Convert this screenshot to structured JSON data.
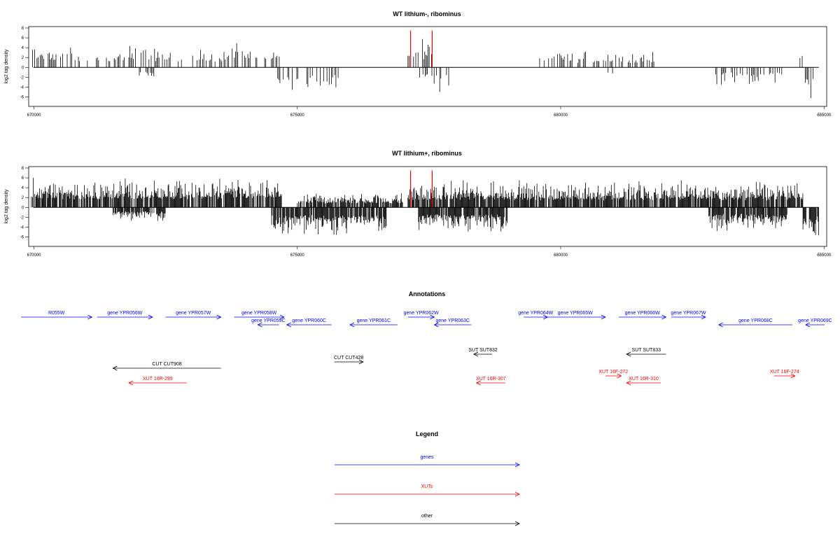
{
  "colors": {
    "genes": "#0000ff",
    "xuts": "#ff0000",
    "other": "#000000",
    "highlight": "#ff0000"
  },
  "chart_data": [
    {
      "type": "bar",
      "title": "WT lithium-, ribominus",
      "ylabel": "log2 tag density",
      "xlim": [
        669900,
        685050
      ],
      "ylim": [
        -6.5,
        8
      ],
      "yticks": [
        -6,
        -4,
        -2,
        0,
        2,
        4,
        6,
        8
      ],
      "xticks": [
        670000,
        675000,
        680000,
        685000
      ],
      "xtick_labels": [
        "670000",
        "675000",
        "680000",
        "685000"
      ],
      "grid": false,
      "density": "sparse",
      "plus_strand_regions": [
        {
          "from": 669950,
          "to": 673700,
          "max": 4.5
        },
        {
          "from": 673700,
          "to": 674700,
          "max": 5.5
        },
        {
          "from": 677100,
          "to": 677600,
          "max": 5.8
        },
        {
          "from": 679600,
          "to": 681800,
          "max": 3.5
        },
        {
          "from": 684500,
          "to": 684600,
          "max": 3.5
        }
      ],
      "minus_strand_regions": [
        {
          "from": 672000,
          "to": 672300,
          "max": -3.5
        },
        {
          "from": 674500,
          "to": 675800,
          "max": -5.5
        },
        {
          "from": 677300,
          "to": 678000,
          "max": -5
        },
        {
          "from": 680900,
          "to": 681000,
          "max": -3
        },
        {
          "from": 682900,
          "to": 684200,
          "max": -4
        },
        {
          "from": 684600,
          "to": 684900,
          "max": -7
        }
      ],
      "highlights": [
        {
          "x": 677150,
          "value": 7.5
        },
        {
          "x": 677560,
          "value": 7.5
        }
      ]
    },
    {
      "type": "bar",
      "title": "WT lithium+, ribominus",
      "ylabel": "log2 tag density",
      "xlim": [
        669900,
        685050
      ],
      "ylim": [
        -6.5,
        8
      ],
      "yticks": [
        -6,
        -4,
        -2,
        0,
        2,
        4,
        6,
        8
      ],
      "xticks": [
        670000,
        675000,
        680000,
        685000
      ],
      "xtick_labels": [
        "670000",
        "675000",
        "680000",
        "685000"
      ],
      "grid": false,
      "density": "dense",
      "plus_strand_regions": [
        {
          "from": 669950,
          "to": 674700,
          "max": 6
        },
        {
          "from": 675000,
          "to": 677000,
          "max": 3
        },
        {
          "from": 677100,
          "to": 677600,
          "max": 5
        },
        {
          "from": 677600,
          "to": 684600,
          "max": 5.5
        }
      ],
      "minus_strand_regions": [
        {
          "from": 671500,
          "to": 672500,
          "max": -3
        },
        {
          "from": 674500,
          "to": 676700,
          "max": -6
        },
        {
          "from": 677300,
          "to": 679000,
          "max": -5.5
        },
        {
          "from": 682800,
          "to": 684300,
          "max": -5
        },
        {
          "from": 684600,
          "to": 684900,
          "max": -7
        }
      ],
      "highlights": [
        {
          "x": 677150,
          "value": 7.5
        },
        {
          "x": 677560,
          "value": 7.5
        }
      ]
    }
  ],
  "annotations": {
    "title": "Annotations",
    "features": [
      {
        "label": "R055W",
        "type": "genes",
        "dir": "right",
        "row": 0,
        "start": 669300,
        "end": 671100
      },
      {
        "label": "gene YPR056W",
        "type": "genes",
        "dir": "right",
        "row": 0,
        "start": 671200,
        "end": 672250
      },
      {
        "label": "gene YPR057W",
        "type": "genes",
        "dir": "right",
        "row": 0,
        "start": 672500,
        "end": 673550
      },
      {
        "label": "gene YPR058W",
        "type": "genes",
        "dir": "right",
        "row": 0,
        "start": 673800,
        "end": 674750
      },
      {
        "label": "gene YPR059C",
        "type": "genes",
        "dir": "left",
        "row": 1,
        "start": 674250,
        "end": 674650
      },
      {
        "label": "gene YPR060C",
        "type": "genes",
        "dir": "left",
        "row": 1,
        "start": 674800,
        "end": 675650
      },
      {
        "label": "gene YPR061C",
        "type": "genes",
        "dir": "left",
        "row": 1,
        "start": 676000,
        "end": 676900
      },
      {
        "label": "gene YPR062W",
        "type": "genes",
        "dir": "right",
        "row": 0,
        "start": 677100,
        "end": 677600
      },
      {
        "label": "gene YPR063C",
        "type": "genes",
        "dir": "left",
        "row": 1,
        "start": 677600,
        "end": 678300
      },
      {
        "label": "gene YPR064W",
        "type": "genes",
        "dir": "right",
        "row": 0,
        "start": 679300,
        "end": 679750
      },
      {
        "label": "gene YPR065W",
        "type": "genes",
        "dir": "right",
        "row": 0,
        "start": 679700,
        "end": 680850
      },
      {
        "label": "gene YPR066W",
        "type": "genes",
        "dir": "right",
        "row": 0,
        "start": 681100,
        "end": 682000
      },
      {
        "label": "gene YPR067W",
        "type": "genes",
        "dir": "right",
        "row": 0,
        "start": 682100,
        "end": 682750
      },
      {
        "label": "gene YPR068C",
        "type": "genes",
        "dir": "left",
        "row": 1,
        "start": 683000,
        "end": 684400
      },
      {
        "label": "gene YPR069C",
        "type": "genes",
        "dir": "left",
        "row": 1,
        "start": 684650,
        "end": 685500
      },
      {
        "label": "SUT SUT832",
        "type": "other",
        "dir": "left",
        "row": 2,
        "start": 678350,
        "end": 678700
      },
      {
        "label": "SUT SUT833",
        "type": "other",
        "dir": "left",
        "row": 2,
        "start": 681250,
        "end": 682000
      },
      {
        "label": "CUT CUT428",
        "type": "other",
        "dir": "right",
        "row": 3,
        "start": 675700,
        "end": 676250
      },
      {
        "label": "CUT CUT908",
        "type": "other",
        "dir": "left",
        "row": 4,
        "start": 671500,
        "end": 673550
      },
      {
        "label": "XUT 16F-272",
        "type": "xuts",
        "dir": "right",
        "row": 5,
        "start": 680850,
        "end": 681150
      },
      {
        "label": "XUT 16F-274",
        "type": "xuts",
        "dir": "right",
        "row": 5,
        "start": 684050,
        "end": 684450
      },
      {
        "label": "XUT 16R-299",
        "type": "xuts",
        "dir": "left",
        "row": 6,
        "start": 671800,
        "end": 672900
      },
      {
        "label": "XUT 16R-307",
        "type": "xuts",
        "dir": "left",
        "row": 6,
        "start": 678400,
        "end": 678950
      },
      {
        "label": "XUT 16R-310",
        "type": "xuts",
        "dir": "left",
        "row": 6,
        "start": 681250,
        "end": 681900
      }
    ]
  },
  "legend": {
    "title": "Legend",
    "items": [
      {
        "label": "genes",
        "type": "genes"
      },
      {
        "label": "XUTs",
        "type": "xuts"
      },
      {
        "label": "other",
        "type": "other"
      }
    ]
  }
}
